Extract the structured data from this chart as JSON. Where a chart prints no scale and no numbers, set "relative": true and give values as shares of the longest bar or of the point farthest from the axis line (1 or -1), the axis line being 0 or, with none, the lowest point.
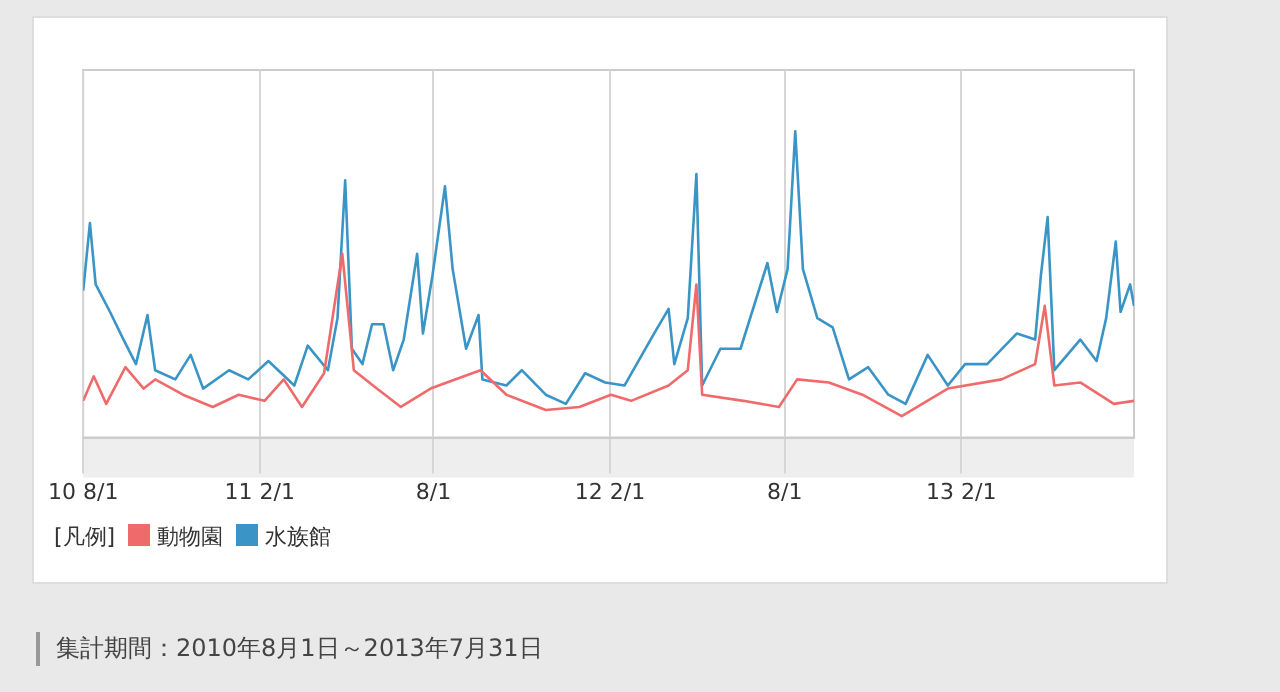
{
  "chart_data": {
    "type": "line",
    "relative": true,
    "grid": "x",
    "legend": "bottom left",
    "legend_title": "[凡例]",
    "marker": "none",
    "line_style": "solid",
    "xlim": [
      "2010-08-01",
      "2013-07-31"
    ],
    "xticks": [
      {
        "value": "2010-08-01",
        "label": "10 8/1"
      },
      {
        "value": "2011-02-01",
        "label": "11 2/1"
      },
      {
        "value": "2011-08-01",
        "label": "8/1"
      },
      {
        "value": "2012-02-01",
        "label": "12 2/1"
      },
      {
        "value": "2012-08-01",
        "label": "8/1"
      },
      {
        "value": "2013-02-01",
        "label": "13 2/1"
      }
    ],
    "annotations": [
      "集計期間：2010年8月1日～2013年7月31日"
    ],
    "series": [
      {
        "name": "動物園",
        "color": "#ef6b6b",
        "x": [
          "2010-08-01",
          "2010-08-12",
          "2010-08-25",
          "2010-09-14",
          "2010-10-03",
          "2010-10-15",
          "2010-11-13",
          "2010-12-14",
          "2011-01-10",
          "2011-02-06",
          "2011-02-26",
          "2011-03-17",
          "2011-04-09",
          "2011-04-28",
          "2011-05-10",
          "2011-05-30",
          "2011-06-28",
          "2011-07-29",
          "2011-08-15",
          "2011-09-19",
          "2011-10-16",
          "2011-11-26",
          "2011-12-31",
          "2012-02-02",
          "2012-02-23",
          "2012-04-02",
          "2012-04-22",
          "2012-05-01",
          "2012-05-07",
          "2012-06-19",
          "2012-07-26",
          "2012-08-14",
          "2012-09-16",
          "2012-10-21",
          "2012-12-01",
          "2013-01-18",
          "2013-03-15",
          "2013-04-19",
          "2013-04-29",
          "2013-05-09",
          "2013-06-05",
          "2013-07-10",
          "2013-07-31"
        ],
        "values": [
          0.12,
          0.2,
          0.11,
          0.23,
          0.16,
          0.19,
          0.14,
          0.1,
          0.14,
          0.12,
          0.19,
          0.1,
          0.21,
          0.6,
          0.22,
          0.17,
          0.1,
          0.16,
          0.18,
          0.22,
          0.14,
          0.09,
          0.1,
          0.14,
          0.12,
          0.17,
          0.22,
          0.5,
          0.14,
          0.12,
          0.1,
          0.19,
          0.18,
          0.14,
          0.07,
          0.16,
          0.19,
          0.24,
          0.43,
          0.17,
          0.18,
          0.11,
          0.12
        ]
      },
      {
        "name": "水族館",
        "color": "#3a95c6",
        "x": [
          "2010-08-01",
          "2010-08-08",
          "2010-08-14",
          "2010-08-29",
          "2010-09-12",
          "2010-09-25",
          "2010-10-07",
          "2010-10-15",
          "2010-11-05",
          "2010-11-21",
          "2010-12-04",
          "2010-12-31",
          "2011-01-20",
          "2011-02-10",
          "2011-03-09",
          "2011-03-23",
          "2011-04-13",
          "2011-04-23",
          "2011-05-01",
          "2011-05-08",
          "2011-05-19",
          "2011-05-29",
          "2011-06-10",
          "2011-06-20",
          "2011-07-01",
          "2011-07-15",
          "2011-07-21",
          "2011-07-31",
          "2011-08-13",
          "2011-08-21",
          "2011-09-04",
          "2011-09-17",
          "2011-09-21",
          "2011-10-16",
          "2011-11-01",
          "2011-11-26",
          "2011-12-17",
          "2012-01-06",
          "2012-01-27",
          "2012-02-16",
          "2012-03-18",
          "2012-04-02",
          "2012-04-08",
          "2012-04-22",
          "2012-05-01",
          "2012-05-07",
          "2012-05-26",
          "2012-06-16",
          "2012-07-14",
          "2012-07-24",
          "2012-08-04",
          "2012-08-12",
          "2012-08-20",
          "2012-09-04",
          "2012-09-20",
          "2012-10-07",
          "2012-10-27",
          "2012-11-17",
          "2012-12-05",
          "2012-12-28",
          "2013-01-18",
          "2013-02-05",
          "2013-02-28",
          "2013-03-31",
          "2013-04-19",
          "2013-04-25",
          "2013-05-02",
          "2013-05-09",
          "2013-06-05",
          "2013-06-22",
          "2013-07-02",
          "2013-07-12",
          "2013-07-17",
          "2013-07-27",
          "2013-07-31"
        ],
        "values": [
          0.48,
          0.7,
          0.5,
          0.41,
          0.32,
          0.24,
          0.4,
          0.22,
          0.19,
          0.27,
          0.16,
          0.22,
          0.19,
          0.25,
          0.17,
          0.3,
          0.22,
          0.39,
          0.84,
          0.29,
          0.24,
          0.37,
          0.37,
          0.22,
          0.32,
          0.6,
          0.34,
          0.53,
          0.82,
          0.55,
          0.29,
          0.4,
          0.19,
          0.17,
          0.22,
          0.14,
          0.11,
          0.21,
          0.18,
          0.17,
          0.34,
          0.42,
          0.24,
          0.39,
          0.86,
          0.17,
          0.29,
          0.29,
          0.57,
          0.41,
          0.55,
          1.0,
          0.55,
          0.39,
          0.36,
          0.19,
          0.23,
          0.14,
          0.11,
          0.27,
          0.17,
          0.24,
          0.24,
          0.34,
          0.32,
          0.53,
          0.72,
          0.22,
          0.32,
          0.25,
          0.39,
          0.64,
          0.41,
          0.5,
          0.43
        ]
      }
    ]
  }
}
